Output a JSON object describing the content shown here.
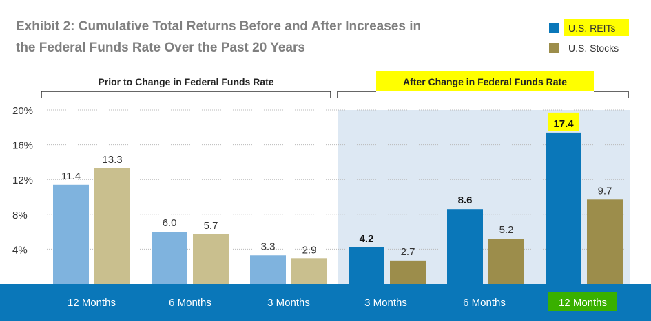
{
  "chart_data": {
    "type": "bar",
    "title": "Exhibit 2: Cumulative Total Returns Before and After Increases in",
    "subtitle": "the Federal Funds Rate Over the Past 20 Years",
    "legend": [
      {
        "label": "U.S. REITs",
        "color": "#0a77b9"
      },
      {
        "label": "U.S. Stocks",
        "color": "#9c8d4b"
      }
    ],
    "sections": [
      {
        "label": "Prior to Change in Federal Funds Rate"
      },
      {
        "label": "After Change in Federal Funds Rate"
      }
    ],
    "categories": [
      "12 Months",
      "6 Months",
      "3 Months",
      "3 Months",
      "6 Months",
      "12 Months"
    ],
    "series": [
      {
        "name": "U.S. REITs",
        "values": [
          11.4,
          6.0,
          3.3,
          4.2,
          8.6,
          17.4
        ],
        "labels": [
          "11.4",
          "6.0",
          "3.3",
          "4.2",
          "8.6",
          "17.4"
        ]
      },
      {
        "name": "U.S. Stocks",
        "values": [
          13.3,
          5.7,
          2.9,
          2.7,
          5.2,
          9.7
        ],
        "labels": [
          "13.3",
          "5.7",
          "2.9",
          "2.7",
          "5.2",
          "9.7"
        ]
      }
    ],
    "yticks": [
      "4%",
      "8%",
      "12%",
      "16%",
      "20%"
    ],
    "ytick_values": [
      4,
      8,
      12,
      16,
      20
    ],
    "ylim": [
      0,
      20
    ],
    "grid": true,
    "colors": {
      "reits_prior": "#7fb3de",
      "stocks_prior": "#c9bf8e",
      "reits_after": "#0a77b9",
      "stocks_after": "#9c8d4b",
      "after_background": "#dde8f3",
      "category_band": "#0a77b9",
      "highlight_yellow": "#ffff00",
      "highlight_green": "#39b000"
    }
  }
}
